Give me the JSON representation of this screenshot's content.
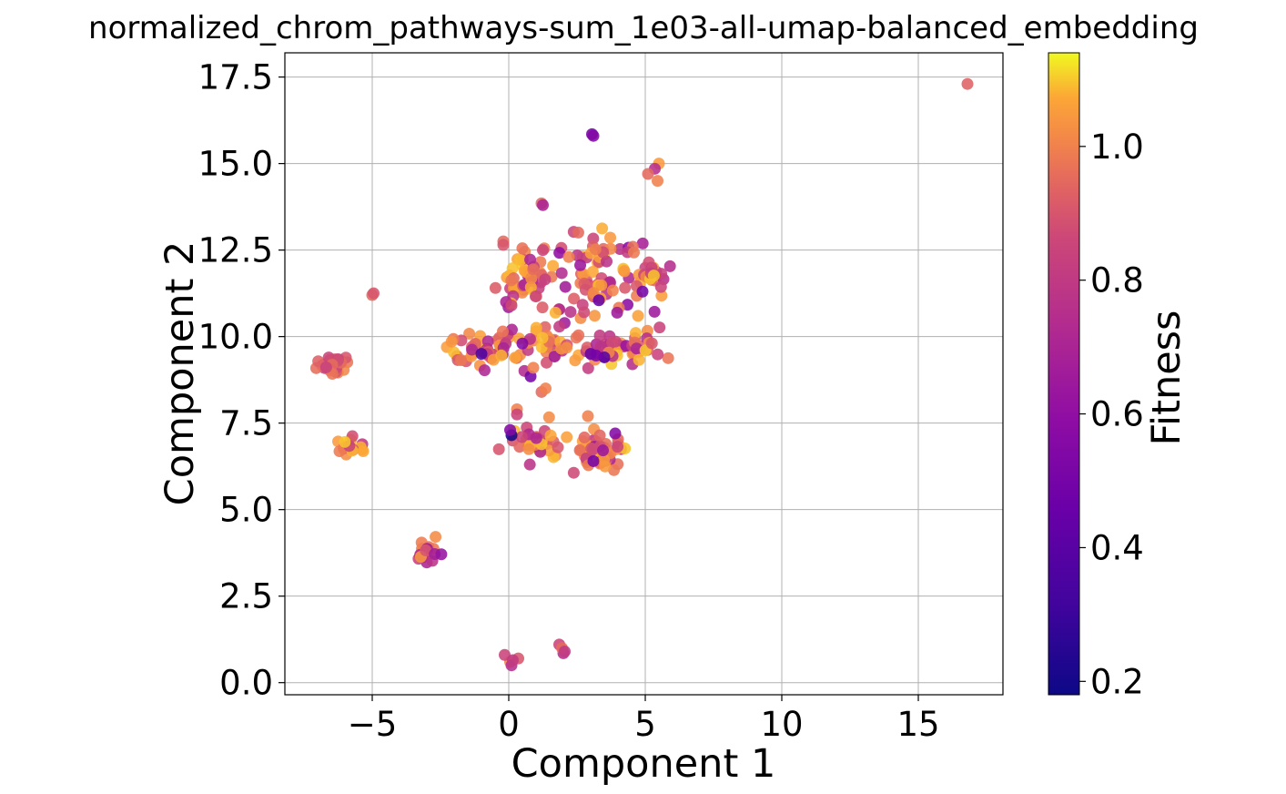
{
  "chart_data": {
    "type": "scatter",
    "title": "normalized_chrom_pathways-sum_1e03-all-umap-balanced_embedding",
    "xlabel": "Component 1",
    "ylabel": "Component 2",
    "xlim": [
      -8.2,
      18.1
    ],
    "ylim": [
      -0.35,
      18.2
    ],
    "xticks": [
      -5,
      0,
      5,
      10,
      15
    ],
    "xtick_labels": [
      "−5",
      "0",
      "5",
      "10",
      "15"
    ],
    "yticks": [
      0.0,
      2.5,
      5.0,
      7.5,
      10.0,
      12.5,
      15.0,
      17.5
    ],
    "ytick_labels": [
      "0.0",
      "2.5",
      "5.0",
      "7.5",
      "10.0",
      "12.5",
      "15.0",
      "17.5"
    ],
    "grid": true,
    "colorbar": {
      "label": "Fitness",
      "colormap": "plasma",
      "range": [
        0.18,
        1.14
      ],
      "ticks": [
        0.2,
        0.4,
        0.6,
        0.8,
        1.0
      ],
      "tick_labels": [
        "0.2",
        "0.4",
        "0.6",
        "0.8",
        "1.0"
      ]
    },
    "clusters": [
      {
        "cx": -6.4,
        "cy": 9.2,
        "sx": 0.35,
        "sy": 0.15,
        "n": 28,
        "fmin": 0.7,
        "fmax": 1.05
      },
      {
        "cx": -5.8,
        "cy": 6.85,
        "sx": 0.3,
        "sy": 0.15,
        "n": 18,
        "fmin": 0.7,
        "fmax": 1.1
      },
      {
        "cx": -3.0,
        "cy": 3.85,
        "sx": 0.25,
        "sy": 0.25,
        "n": 18,
        "fmin": 0.6,
        "fmax": 1.05
      },
      {
        "cx": -1.0,
        "cy": 9.6,
        "sx": 0.6,
        "sy": 0.25,
        "n": 45,
        "fmin": 0.65,
        "fmax": 1.1
      },
      {
        "cx": 0.6,
        "cy": 11.7,
        "sx": 0.5,
        "sy": 0.35,
        "n": 40,
        "fmin": 0.65,
        "fmax": 1.1
      },
      {
        "cx": 1.4,
        "cy": 9.7,
        "sx": 0.8,
        "sy": 0.3,
        "n": 40,
        "fmin": 0.6,
        "fmax": 1.1
      },
      {
        "cx": 3.5,
        "cy": 11.8,
        "sx": 0.9,
        "sy": 0.6,
        "n": 90,
        "fmin": 0.55,
        "fmax": 1.1
      },
      {
        "cx": 3.8,
        "cy": 9.7,
        "sx": 0.8,
        "sy": 0.3,
        "n": 40,
        "fmin": 0.6,
        "fmax": 1.1
      },
      {
        "cx": 0.9,
        "cy": 6.9,
        "sx": 0.5,
        "sy": 0.25,
        "n": 32,
        "fmin": 0.65,
        "fmax": 1.1
      },
      {
        "cx": 3.4,
        "cy": 6.7,
        "sx": 0.45,
        "sy": 0.25,
        "n": 50,
        "fmin": 0.6,
        "fmax": 1.1
      },
      {
        "cx": 5.3,
        "cy": 11.7,
        "sx": 0.2,
        "sy": 0.2,
        "n": 10,
        "fmin": 0.75,
        "fmax": 1.1
      },
      {
        "cx": 5.0,
        "cy": 9.6,
        "sx": 0.3,
        "sy": 0.2,
        "n": 12,
        "fmin": 0.7,
        "fmax": 1.1
      }
    ],
    "points": [
      {
        "x": 16.8,
        "y": 17.3,
        "f": 0.93
      },
      {
        "x": 3.05,
        "y": 15.85,
        "f": 0.5
      },
      {
        "x": 3.1,
        "y": 15.8,
        "f": 0.55
      },
      {
        "x": 5.5,
        "y": 15.0,
        "f": 1.05
      },
      {
        "x": 5.35,
        "y": 14.85,
        "f": 0.75
      },
      {
        "x": 5.1,
        "y": 14.7,
        "f": 0.95
      },
      {
        "x": 5.45,
        "y": 14.5,
        "f": 1.0
      },
      {
        "x": -5.0,
        "y": 11.2,
        "f": 0.95
      },
      {
        "x": -4.95,
        "y": 11.25,
        "f": 0.9
      },
      {
        "x": 1.2,
        "y": 13.85,
        "f": 0.95
      },
      {
        "x": 1.25,
        "y": 13.8,
        "f": 0.7
      },
      {
        "x": -0.2,
        "y": 12.75,
        "f": 0.95
      },
      {
        "x": -0.2,
        "y": 12.65,
        "f": 0.9
      },
      {
        "x": 1.3,
        "y": 12.55,
        "f": 1.0
      },
      {
        "x": 1.25,
        "y": 12.5,
        "f": 0.85
      },
      {
        "x": 0.05,
        "y": 0.6,
        "f": 1.0
      },
      {
        "x": -0.15,
        "y": 0.8,
        "f": 0.85
      },
      {
        "x": 0.1,
        "y": 0.5,
        "f": 0.75
      },
      {
        "x": 0.35,
        "y": 0.7,
        "f": 0.9
      },
      {
        "x": 0.15,
        "y": 0.65,
        "f": 0.8
      },
      {
        "x": 1.85,
        "y": 1.1,
        "f": 0.85
      },
      {
        "x": 2.0,
        "y": 0.85,
        "f": 0.75
      },
      {
        "x": 1.95,
        "y": 1.0,
        "f": 0.95
      },
      {
        "x": 2.05,
        "y": 0.9,
        "f": 0.8
      },
      {
        "x": 0.1,
        "y": 7.15,
        "f": 0.2
      },
      {
        "x": 0.05,
        "y": 7.3,
        "f": 0.55
      },
      {
        "x": -1.0,
        "y": 9.5,
        "f": 0.35
      },
      {
        "x": 3.5,
        "y": 9.4,
        "f": 0.4
      },
      {
        "x": 3.0,
        "y": 9.5,
        "f": 0.45
      },
      {
        "x": 3.2,
        "y": 9.45,
        "f": 0.5
      },
      {
        "x": 3.3,
        "y": 11.05,
        "f": 0.45
      },
      {
        "x": 4.9,
        "y": 11.3,
        "f": 0.5
      },
      {
        "x": 3.9,
        "y": 7.2,
        "f": 0.55
      },
      {
        "x": 0.8,
        "y": 8.85,
        "f": 0.5
      },
      {
        "x": 3.1,
        "y": 6.4,
        "f": 0.5
      },
      {
        "x": 2.9,
        "y": 7.7,
        "f": 1.0
      },
      {
        "x": 1.2,
        "y": 8.4,
        "f": 0.95
      },
      {
        "x": 1.35,
        "y": 8.5,
        "f": 1.0
      },
      {
        "x": 0.9,
        "y": 9.1,
        "f": 1.0
      },
      {
        "x": 1.8,
        "y": 6.8,
        "f": 0.9
      },
      {
        "x": 0.3,
        "y": 7.9,
        "f": 1.0
      },
      {
        "x": 0.3,
        "y": 7.75,
        "f": 0.85
      },
      {
        "x": 2.2,
        "y": 12.3,
        "f": 1.0
      },
      {
        "x": 0.5,
        "y": 9.8,
        "f": 0.55
      },
      {
        "x": -0.1,
        "y": 11.0,
        "f": 0.7
      },
      {
        "x": 0.1,
        "y": 10.9,
        "f": 0.85
      }
    ]
  }
}
